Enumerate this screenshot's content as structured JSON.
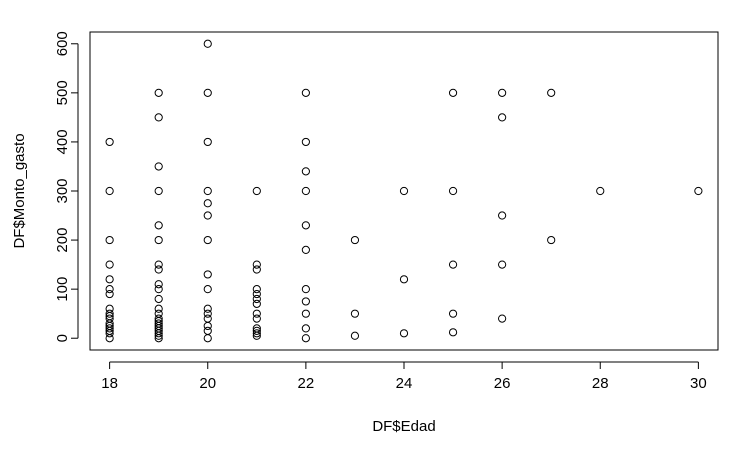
{
  "chart_data": {
    "type": "scatter",
    "title": "",
    "xlabel": "DF$Edad",
    "ylabel": "DF$Monto_gasto",
    "xlim": [
      17.6,
      30.4
    ],
    "ylim": [
      -24,
      624
    ],
    "xticks": [
      18,
      20,
      22,
      24,
      26,
      28,
      30
    ],
    "yticks": [
      0,
      100,
      200,
      300,
      400,
      500,
      600
    ],
    "grid": false,
    "legend": "none",
    "marker": "open-circle",
    "colors": {
      "points": "#000000",
      "axes": "#000000",
      "background": "#ffffff"
    },
    "points": [
      {
        "x": 18,
        "y": 400
      },
      {
        "x": 18,
        "y": 300
      },
      {
        "x": 18,
        "y": 200
      },
      {
        "x": 18,
        "y": 150
      },
      {
        "x": 18,
        "y": 120
      },
      {
        "x": 18,
        "y": 100
      },
      {
        "x": 18,
        "y": 90
      },
      {
        "x": 18,
        "y": 60
      },
      {
        "x": 18,
        "y": 50
      },
      {
        "x": 18,
        "y": 45
      },
      {
        "x": 18,
        "y": 40
      },
      {
        "x": 18,
        "y": 30
      },
      {
        "x": 18,
        "y": 25
      },
      {
        "x": 18,
        "y": 20
      },
      {
        "x": 18,
        "y": 15
      },
      {
        "x": 18,
        "y": 10
      },
      {
        "x": 18,
        "y": 0
      },
      {
        "x": 19,
        "y": 500
      },
      {
        "x": 19,
        "y": 450
      },
      {
        "x": 19,
        "y": 350
      },
      {
        "x": 19,
        "y": 300
      },
      {
        "x": 19,
        "y": 230
      },
      {
        "x": 19,
        "y": 200
      },
      {
        "x": 19,
        "y": 150
      },
      {
        "x": 19,
        "y": 140
      },
      {
        "x": 19,
        "y": 110
      },
      {
        "x": 19,
        "y": 100
      },
      {
        "x": 19,
        "y": 80
      },
      {
        "x": 19,
        "y": 60
      },
      {
        "x": 19,
        "y": 50
      },
      {
        "x": 19,
        "y": 40
      },
      {
        "x": 19,
        "y": 35
      },
      {
        "x": 19,
        "y": 30
      },
      {
        "x": 19,
        "y": 25
      },
      {
        "x": 19,
        "y": 20
      },
      {
        "x": 19,
        "y": 15
      },
      {
        "x": 19,
        "y": 10
      },
      {
        "x": 19,
        "y": 5
      },
      {
        "x": 19,
        "y": 0
      },
      {
        "x": 20,
        "y": 600
      },
      {
        "x": 20,
        "y": 500
      },
      {
        "x": 20,
        "y": 400
      },
      {
        "x": 20,
        "y": 300
      },
      {
        "x": 20,
        "y": 275
      },
      {
        "x": 20,
        "y": 250
      },
      {
        "x": 20,
        "y": 200
      },
      {
        "x": 20,
        "y": 130
      },
      {
        "x": 20,
        "y": 100
      },
      {
        "x": 20,
        "y": 60
      },
      {
        "x": 20,
        "y": 50
      },
      {
        "x": 20,
        "y": 40
      },
      {
        "x": 20,
        "y": 25
      },
      {
        "x": 20,
        "y": 15
      },
      {
        "x": 20,
        "y": 0
      },
      {
        "x": 21,
        "y": 300
      },
      {
        "x": 21,
        "y": 150
      },
      {
        "x": 21,
        "y": 140
      },
      {
        "x": 21,
        "y": 100
      },
      {
        "x": 21,
        "y": 90
      },
      {
        "x": 21,
        "y": 80
      },
      {
        "x": 21,
        "y": 70
      },
      {
        "x": 21,
        "y": 50
      },
      {
        "x": 21,
        "y": 40
      },
      {
        "x": 21,
        "y": 20
      },
      {
        "x": 21,
        "y": 15
      },
      {
        "x": 21,
        "y": 10
      },
      {
        "x": 21,
        "y": 5
      },
      {
        "x": 22,
        "y": 500
      },
      {
        "x": 22,
        "y": 400
      },
      {
        "x": 22,
        "y": 340
      },
      {
        "x": 22,
        "y": 300
      },
      {
        "x": 22,
        "y": 230
      },
      {
        "x": 22,
        "y": 180
      },
      {
        "x": 22,
        "y": 100
      },
      {
        "x": 22,
        "y": 75
      },
      {
        "x": 22,
        "y": 50
      },
      {
        "x": 22,
        "y": 20
      },
      {
        "x": 22,
        "y": 0
      },
      {
        "x": 23,
        "y": 200
      },
      {
        "x": 23,
        "y": 50
      },
      {
        "x": 23,
        "y": 5
      },
      {
        "x": 24,
        "y": 300
      },
      {
        "x": 24,
        "y": 120
      },
      {
        "x": 24,
        "y": 10
      },
      {
        "x": 25,
        "y": 500
      },
      {
        "x": 25,
        "y": 300
      },
      {
        "x": 25,
        "y": 150
      },
      {
        "x": 25,
        "y": 50
      },
      {
        "x": 25,
        "y": 12
      },
      {
        "x": 26,
        "y": 500
      },
      {
        "x": 26,
        "y": 450
      },
      {
        "x": 26,
        "y": 250
      },
      {
        "x": 26,
        "y": 150
      },
      {
        "x": 26,
        "y": 40
      },
      {
        "x": 27,
        "y": 500
      },
      {
        "x": 27,
        "y": 200
      },
      {
        "x": 28,
        "y": 300
      },
      {
        "x": 30,
        "y": 300
      }
    ]
  }
}
